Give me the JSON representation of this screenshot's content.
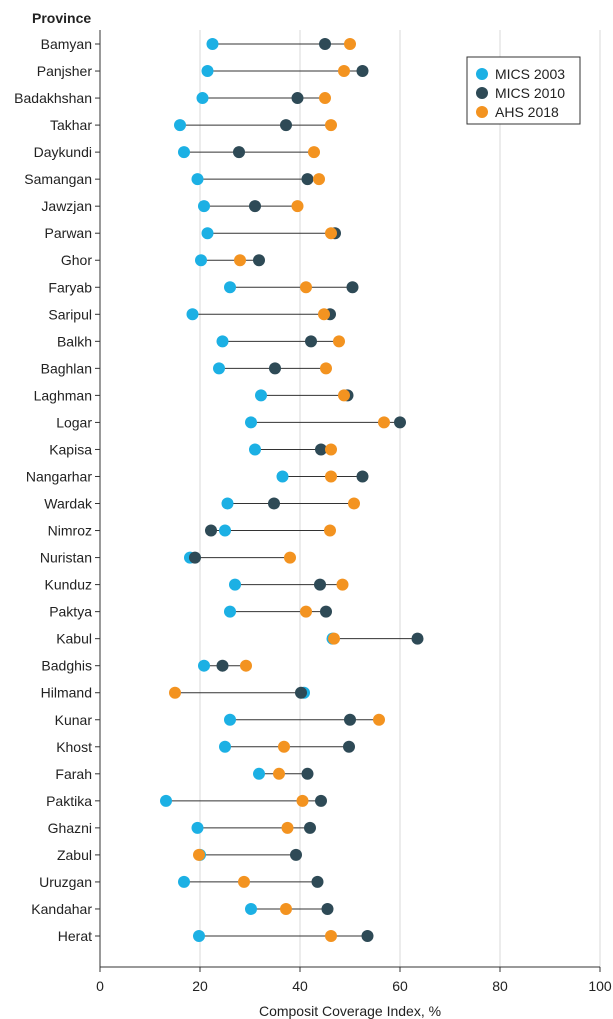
{
  "chart_data": {
    "type": "dot-plot",
    "ylabel": "Province",
    "xlabel": "Composit Coverage Index, %",
    "xlim": [
      0,
      100
    ],
    "xticks": [
      0,
      20,
      40,
      60,
      80,
      100
    ],
    "grid": "vertical",
    "legend_position": "top-right",
    "series": [
      {
        "name": "MICS 2003",
        "color": "#1cb0e4"
      },
      {
        "name": "MICS 2010",
        "color": "#2e4a56"
      },
      {
        "name": "AHS 2018",
        "color": "#f39320"
      }
    ],
    "rows": [
      {
        "province": "Bamyan",
        "values": [
          22.5,
          45.0,
          50.0
        ]
      },
      {
        "province": "Panjsher",
        "values": [
          21.5,
          52.5,
          48.8
        ]
      },
      {
        "province": "Badakhshan",
        "values": [
          20.5,
          39.5,
          45.0
        ]
      },
      {
        "province": "Takhar",
        "values": [
          16.0,
          37.2,
          46.2
        ]
      },
      {
        "province": "Daykundi",
        "values": [
          16.8,
          27.8,
          42.8
        ]
      },
      {
        "province": "Samangan",
        "values": [
          19.5,
          41.5,
          43.8
        ]
      },
      {
        "province": "Jawzjan",
        "values": [
          20.8,
          31.0,
          39.5
        ]
      },
      {
        "province": "Parwan",
        "values": [
          21.5,
          47.0,
          46.2
        ]
      },
      {
        "province": "Ghor",
        "values": [
          20.2,
          31.8,
          28.0
        ]
      },
      {
        "province": "Faryab",
        "values": [
          26.0,
          50.5,
          41.2
        ]
      },
      {
        "province": "Saripul",
        "values": [
          18.5,
          46.0,
          44.8
        ]
      },
      {
        "province": "Balkh",
        "values": [
          24.5,
          42.2,
          47.8
        ]
      },
      {
        "province": "Baghlan",
        "values": [
          23.8,
          35.0,
          45.2
        ]
      },
      {
        "province": "Laghman",
        "values": [
          32.2,
          49.5,
          48.8
        ]
      },
      {
        "province": "Logar",
        "values": [
          30.2,
          60.0,
          56.8
        ]
      },
      {
        "province": "Kapisa",
        "values": [
          31.0,
          44.2,
          46.2
        ]
      },
      {
        "province": "Nangarhar",
        "values": [
          36.5,
          52.5,
          46.2
        ]
      },
      {
        "province": "Wardak",
        "values": [
          25.5,
          34.8,
          50.8
        ]
      },
      {
        "province": "Nimroz",
        "values": [
          25.0,
          22.2,
          46.0
        ]
      },
      {
        "province": "Nuristan",
        "values": [
          18.0,
          19.0,
          38.0
        ]
      },
      {
        "province": "Kunduz",
        "values": [
          27.0,
          44.0,
          48.5
        ]
      },
      {
        "province": "Paktya",
        "values": [
          26.0,
          45.2,
          41.2
        ]
      },
      {
        "province": "Kabul",
        "values": [
          46.5,
          63.5,
          46.8
        ]
      },
      {
        "province": "Badghis",
        "values": [
          20.8,
          24.5,
          29.2
        ]
      },
      {
        "province": "Hilmand",
        "values": [
          40.8,
          40.2,
          15.0
        ]
      },
      {
        "province": "Kunar",
        "values": [
          26.0,
          50.0,
          55.8
        ]
      },
      {
        "province": "Khost",
        "values": [
          25.0,
          49.8,
          36.8
        ]
      },
      {
        "province": "Farah",
        "values": [
          31.8,
          41.5,
          35.8
        ]
      },
      {
        "province": "Paktika",
        "values": [
          13.2,
          44.2,
          40.5
        ]
      },
      {
        "province": "Ghazni",
        "values": [
          19.5,
          42.0,
          37.5
        ]
      },
      {
        "province": "Zabul",
        "values": [
          20.0,
          39.2,
          19.8
        ]
      },
      {
        "province": "Uruzgan",
        "values": [
          16.8,
          43.5,
          28.8
        ]
      },
      {
        "province": "Kandahar",
        "values": [
          30.2,
          45.5,
          37.2
        ]
      },
      {
        "province": "Herat",
        "values": [
          19.8,
          53.5,
          46.2
        ]
      }
    ]
  }
}
